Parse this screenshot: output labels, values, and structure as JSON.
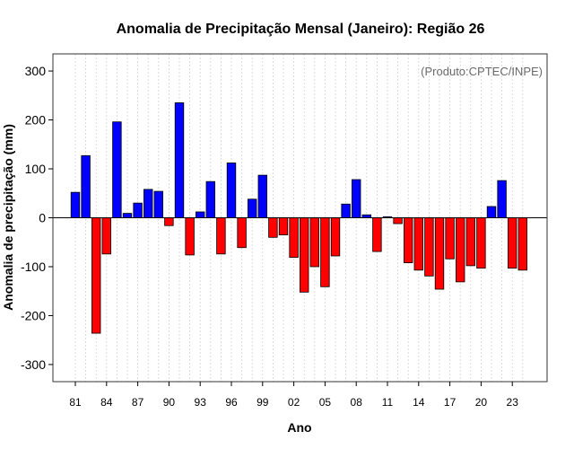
{
  "chart_data": {
    "type": "bar",
    "title": "Anomalia de Precipitação Mensal (Janeiro): Região 26",
    "xlabel": "Ano",
    "ylabel": "Anomalia de precipitação (mm)",
    "credit": "(Produto:CPTEC/INPE)",
    "ylim": [
      -335,
      335
    ],
    "yticks": [
      -300,
      -200,
      -100,
      0,
      100,
      200,
      300
    ],
    "ytick_labels": [
      "-300",
      "-200",
      "-100",
      "0",
      "100",
      "200",
      "300"
    ],
    "xtick_labels": [
      "81",
      "84",
      "87",
      "90",
      "93",
      "96",
      "99",
      "02",
      "05",
      "08",
      "11",
      "14",
      "17",
      "20",
      "23"
    ],
    "xtick_every": 3,
    "positive_color": "#0000ff",
    "negative_color": "#ff0000",
    "grid": "vertical dotted",
    "categories": [
      "1981",
      "1982",
      "1983",
      "1984",
      "1985",
      "1986",
      "1987",
      "1988",
      "1989",
      "1990",
      "1991",
      "1992",
      "1993",
      "1994",
      "1995",
      "1996",
      "1997",
      "1998",
      "1999",
      "2000",
      "2001",
      "2002",
      "2003",
      "2004",
      "2005",
      "2006",
      "2007",
      "2008",
      "2009",
      "2010",
      "2011",
      "2012",
      "2013",
      "2014",
      "2015",
      "2016",
      "2017",
      "2018",
      "2019",
      "2020",
      "2021",
      "2022",
      "2023",
      "2024"
    ],
    "values": [
      52,
      127,
      -236,
      -74,
      196,
      9,
      30,
      58,
      54,
      -16,
      235,
      -76,
      12,
      74,
      -74,
      112,
      -61,
      38,
      87,
      -40,
      -35,
      -81,
      -152,
      -100,
      -141,
      -78,
      28,
      78,
      6,
      -69,
      2,
      -12,
      -92,
      -107,
      -119,
      -146,
      -84,
      -131,
      -98,
      -103,
      23,
      76,
      -103,
      -107
    ]
  }
}
